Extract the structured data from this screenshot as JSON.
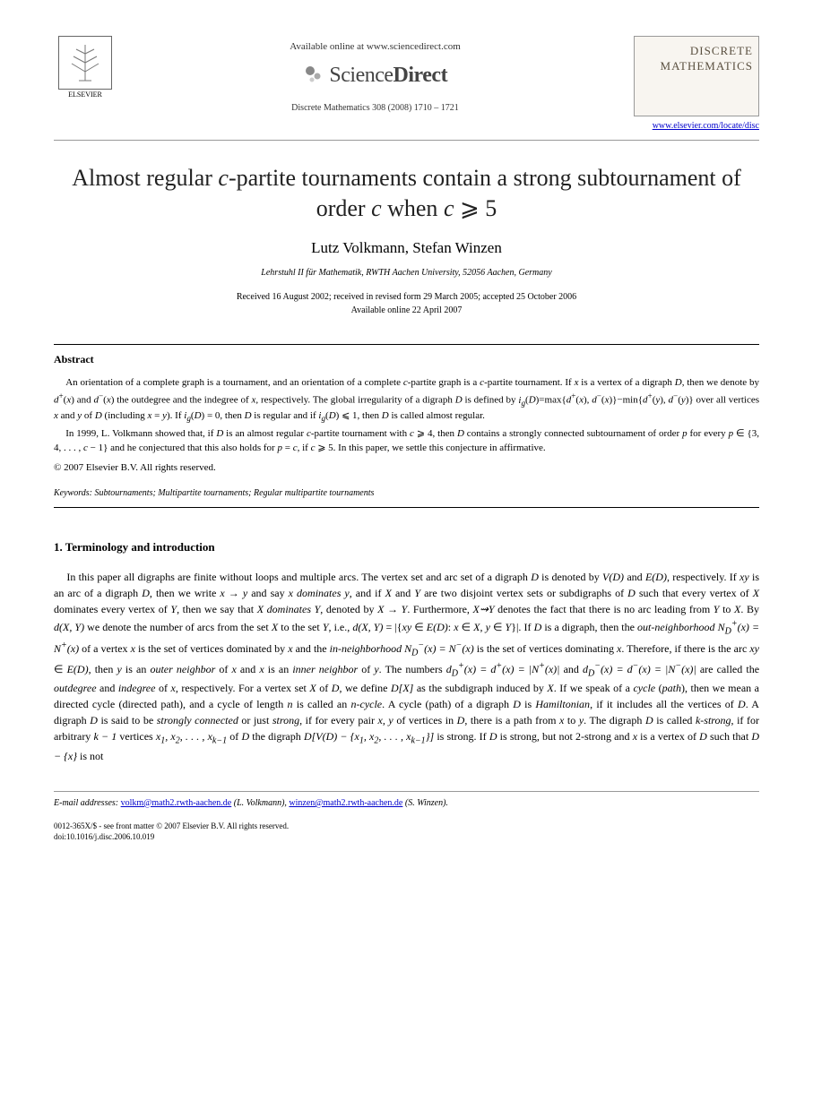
{
  "header": {
    "elsevier_label": "ELSEVIER",
    "available_online": "Available online at www.sciencedirect.com",
    "sciencedirect": "ScienceDirect",
    "journal_ref": "Discrete Mathematics 308 (2008) 1710 – 1721",
    "journal_box_line1": "DISCRETE",
    "journal_box_line2": "MATHEMATICS",
    "journal_link_text": "www.elsevier.com/locate/disc",
    "journal_link_href": "#"
  },
  "paper": {
    "title_html": "Almost regular <span class='math'>c</span>-partite tournaments contain a strong subtournament of order <span class='math'>c</span> when <span class='math'>c</span> ⩾ 5",
    "authors": "Lutz Volkmann, Stefan Winzen",
    "affiliation": "Lehrstuhl II für Mathematik, RWTH Aachen University, 52056 Aachen, Germany",
    "dates_line1": "Received 16 August 2002; received in revised form 29 March 2005; accepted 25 October 2006",
    "dates_line2": "Available online 22 April 2007"
  },
  "abstract": {
    "heading": "Abstract",
    "para1_html": "An orientation of a complete graph is a tournament, and an orientation of a complete <span class='math'>c</span>-partite graph is a <span class='math'>c</span>-partite tournament. If <span class='math'>x</span> is a vertex of a digraph <span class='math'>D</span>, then we denote by <span class='math'>d</span><sup>+</sup>(<span class='math'>x</span>) and <span class='math'>d</span><sup>−</sup>(<span class='math'>x</span>) the outdegree and the indegree of <span class='math'>x</span>, respectively. The global irregularity of a digraph <span class='math'>D</span> is defined by <span class='math'>i<sub>g</sub></span>(<span class='math'>D</span>)=max{<span class='math'>d</span><sup>+</sup>(<span class='math'>x</span>), <span class='math'>d</span><sup>−</sup>(<span class='math'>x</span>)}−min{<span class='math'>d</span><sup>+</sup>(<span class='math'>y</span>), <span class='math'>d</span><sup>−</sup>(<span class='math'>y</span>)} over all vertices <span class='math'>x</span> and <span class='math'>y</span> of <span class='math'>D</span> (including <span class='math'>x</span> = <span class='math'>y</span>). If <span class='math'>i<sub>g</sub></span>(<span class='math'>D</span>) = 0, then <span class='math'>D</span> is regular and if <span class='math'>i<sub>g</sub></span>(<span class='math'>D</span>) ⩽ 1, then <span class='math'>D</span> is called almost regular.",
    "para2_html": "In 1999, L. Volkmann showed that, if <span class='math'>D</span> is an almost regular <span class='math'>c</span>-partite tournament with <span class='math'>c</span> ⩾ 4, then <span class='math'>D</span> contains a strongly connected subtournament of order <span class='math'>p</span> for every <span class='math'>p</span> ∈ {3, 4, . . . , <span class='math'>c</span> − 1} and he conjectured that this also holds for <span class='math'>p</span> = <span class='math'>c</span>, if <span class='math'>c</span> ⩾ 5. In this paper, we settle this conjecture in affirmative.",
    "copyright": "© 2007 Elsevier B.V. All rights reserved.",
    "keywords_label": "Keywords:",
    "keywords_text": "Subtournaments; Multipartite tournaments; Regular multipartite tournaments"
  },
  "section1": {
    "heading": "1. Terminology and introduction",
    "body_html": "In this paper all digraphs are finite without loops and multiple arcs. The vertex set and arc set of a digraph <span class='math'>D</span> is denoted by <span class='math'>V(D)</span> and <span class='math'>E(D)</span>, respectively. If <span class='math'>xy</span> is an arc of a digraph <span class='math'>D</span>, then we write <span class='math'>x → y</span> and say <span class='math'>x dominates y</span>, and if <span class='math'>X</span> and <span class='math'>Y</span> are two disjoint vertex sets or subdigraphs of <span class='math'>D</span> such that every vertex of <span class='math'>X</span> dominates every vertex of <span class='math'>Y</span>, then we say that <span class='math'>X dominates Y</span>, denoted by <span class='math'>X → Y</span>. Furthermore, <span class='math'>X⇝Y</span> denotes the fact that there is no arc leading from <span class='math'>Y</span> to <span class='math'>X</span>. By <span class='math'>d(X, Y)</span> we denote the number of arcs from the set <span class='math'>X</span> to the set <span class='math'>Y</span>, i.e., <span class='math'>d(X, Y)</span> = |{<span class='math'>xy</span> ∈ <span class='math'>E(D)</span>: <span class='math'>x</span> ∈ <span class='math'>X</span>, <span class='math'>y</span> ∈ <span class='math'>Y</span>}|. If <span class='math'>D</span> is a digraph, then the <i>out-neighborhood</i> <span class='math'>N<sub>D</sub><sup>+</sup>(x) = N<sup>+</sup>(x)</span> of a vertex <span class='math'>x</span> is the set of vertices dominated by <span class='math'>x</span> and the <i>in-neighborhood</i> <span class='math'>N<sub>D</sub><sup>−</sup>(x) = N<sup>−</sup>(x)</span> is the set of vertices dominating <span class='math'>x</span>. Therefore, if there is the arc <span class='math'>xy</span> ∈ <span class='math'>E(D)</span>, then <span class='math'>y</span> is an <i>outer neighbor</i> of <span class='math'>x</span> and <span class='math'>x</span> is an <i>inner neighbor</i> of <span class='math'>y</span>. The numbers <span class='math'>d<sub>D</sub><sup>+</sup>(x) = d<sup>+</sup>(x) = |N<sup>+</sup>(x)|</span> and <span class='math'>d<sub>D</sub><sup>−</sup>(x) = d<sup>−</sup>(x) = |N<sup>−</sup>(x)|</span> are called the <i>outdegree</i> and <i>indegree</i> of <span class='math'>x</span>, respectively. For a vertex set <span class='math'>X</span> of <span class='math'>D</span>, we define <span class='math'>D[X]</span> as the subdigraph induced by <span class='math'>X</span>. If we speak of a <i>cycle</i> (<i>path</i>), then we mean a directed cycle (directed path), and a cycle of length <span class='math'>n</span> is called an <i>n-cycle</i>. A cycle (path) of a digraph <span class='math'>D</span> is <i>Hamiltonian</i>, if it includes all the vertices of <span class='math'>D</span>. A digraph <span class='math'>D</span> is said to be <i>strongly connected</i> or just <i>strong</i>, if for every pair <span class='math'>x, y</span> of vertices in <span class='math'>D</span>, there is a path from <span class='math'>x</span> to <span class='math'>y</span>. The digraph <span class='math'>D</span> is called <i>k-strong</i>, if for arbitrary <span class='math'>k − 1</span> vertices <span class='math'>x<sub>1</sub>, x<sub>2</sub>, . . . , x<sub>k−1</sub></span> of <span class='math'>D</span> the digraph <span class='math'>D[V(D) − {x<sub>1</sub>, x<sub>2</sub>, . . . , x<sub>k−1</sub>}]</span> is strong. If <span class='math'>D</span> is strong, but not 2-strong and <span class='math'>x</span> is a vertex of <span class='math'>D</span> such that <span class='math'>D − {x}</span> is not"
  },
  "footer": {
    "email_label": "E-mail addresses:",
    "email1_text": "volkm@math2.rwth-aachen.de",
    "email1_author": "(L. Volkmann),",
    "email2_text": "winzen@math2.rwth-aachen.de",
    "email2_author": "(S. Winzen).",
    "issn_line": "0012-365X/$ - see front matter © 2007 Elsevier B.V. All rights reserved.",
    "doi_line": "doi:10.1016/j.disc.2006.10.019"
  }
}
